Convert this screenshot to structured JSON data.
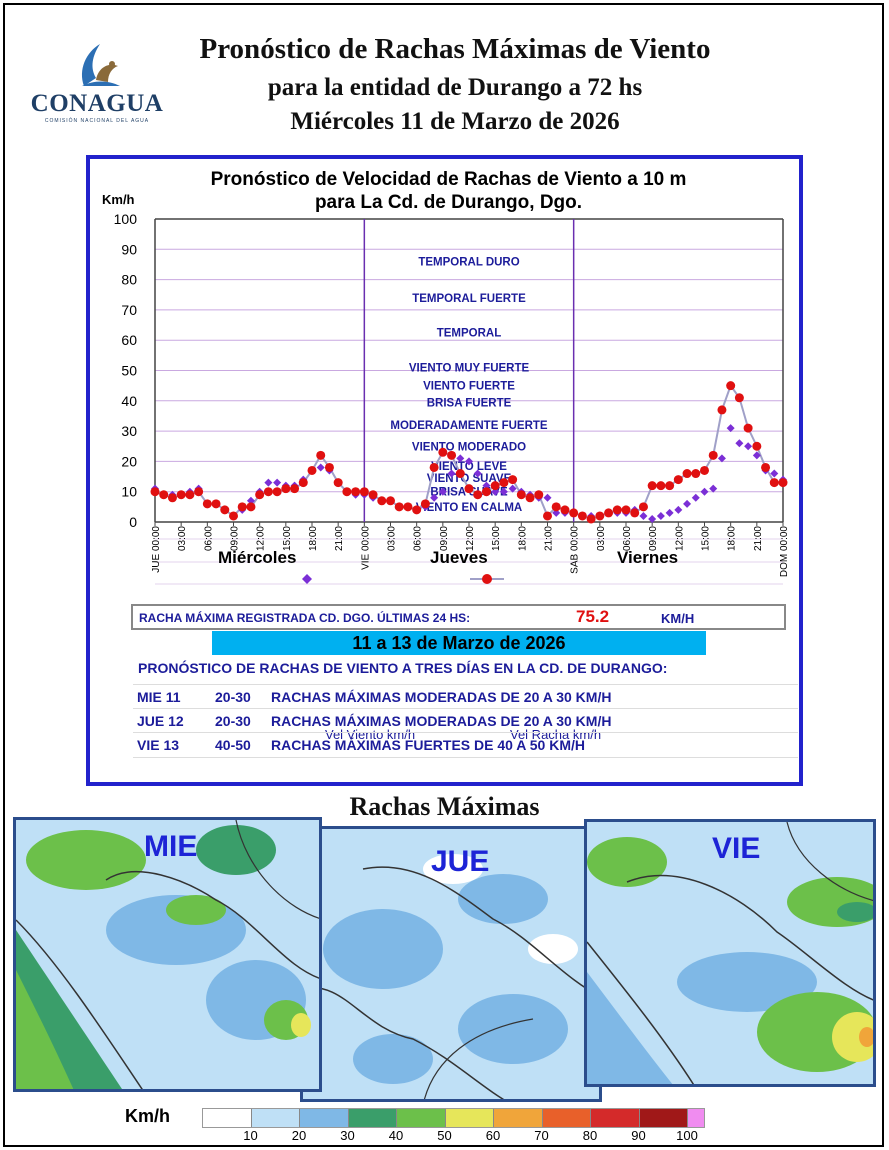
{
  "header": {
    "logo_text": "CONAGUA",
    "logo_subtext": "COMISIÓN NACIONAL DEL AGUA",
    "title_line1": "Pronóstico de Rachas Máximas de Viento",
    "title_line2": "para la entidad de Durango a 72 hs",
    "title_line3": "Miércoles 11 de Marzo de 2026"
  },
  "chart_data": {
    "type": "line",
    "title": "Pronóstico de Velocidad de Rachas de Viento a 10 m",
    "subtitle": "para La Cd. de Durango, Dgo.",
    "ylabel": "Km/h",
    "ylim": [
      0,
      100
    ],
    "yticks": [
      0,
      10,
      20,
      30,
      40,
      50,
      60,
      70,
      80,
      90,
      100
    ],
    "x_hours_step": 1,
    "xlim_hours": [
      0,
      72
    ],
    "xtick_labels": [
      "JUE 00:00",
      "03:00",
      "06:00",
      "09:00",
      "12:00",
      "15:00",
      "18:00",
      "21:00",
      "VIE 00:00",
      "03:00",
      "06:00",
      "09:00",
      "12:00",
      "15:00",
      "18:00",
      "21:00",
      "SAB 00:00",
      "03:00",
      "06:00",
      "09:00",
      "12:00",
      "15:00",
      "18:00",
      "21:00",
      "DOM 00:00"
    ],
    "day_labels": [
      "Miércoles",
      "Jueves",
      "Viernes"
    ],
    "day_dividers_hours": [
      24,
      48
    ],
    "grid": true,
    "legend_placement": "bottom",
    "scale_labels": [
      {
        "text": "TEMPORAL DURO",
        "y": 86
      },
      {
        "text": "TEMPORAL FUERTE",
        "y": 74
      },
      {
        "text": "TEMPORAL",
        "y": 62.5
      },
      {
        "text": "VIENTO MUY FUERTE",
        "y": 51
      },
      {
        "text": "VIENTO FUERTE",
        "y": 45
      },
      {
        "text": "BRISA FUERTE",
        "y": 39.5
      },
      {
        "text": "MODERADAMENTE FUERTE",
        "y": 32
      },
      {
        "text": "VIENTO MODERADO",
        "y": 25
      },
      {
        "text": "VIENTO LEVE",
        "y": 18.5
      },
      {
        "text": "VIENTO SUAVE",
        "y": 14.5
      },
      {
        "text": "BRISA SUAVE",
        "y": 10
      },
      {
        "text": "VIENTO EN CALMA",
        "y": 5
      }
    ],
    "series": [
      {
        "name": "Vel Viento km/h",
        "color": "#7b2fd6",
        "marker": "diamond",
        "values": [
          11,
          9,
          9,
          9,
          10,
          11,
          6,
          6,
          4,
          2,
          4,
          7,
          10,
          13,
          13,
          12,
          12,
          14,
          17,
          18,
          17,
          13,
          10,
          9,
          9,
          8,
          7,
          7,
          5,
          5,
          4,
          5,
          8,
          10,
          16,
          21,
          20,
          16,
          12,
          10,
          10,
          11,
          10,
          9,
          8,
          8,
          3,
          3,
          3,
          2,
          2,
          2,
          3,
          3,
          3,
          4,
          2,
          1,
          2,
          3,
          4,
          6,
          8,
          10,
          11,
          21,
          31,
          26,
          25,
          22,
          17,
          16,
          14
        ]
      },
      {
        "name": "Vel Racha km/h",
        "color": "#e01010",
        "line_color": "#a0a0c8",
        "marker": "circle",
        "values": [
          10,
          9,
          8,
          9,
          9,
          10,
          6,
          6,
          4,
          2,
          5,
          5,
          9,
          10,
          10,
          11,
          11,
          13,
          17,
          22,
          18,
          13,
          10,
          10,
          10,
          9,
          7,
          7,
          5,
          5,
          4,
          6,
          18,
          23,
          22,
          16,
          11,
          9,
          10,
          12,
          13,
          14,
          9,
          8,
          9,
          2,
          5,
          4,
          3,
          2,
          1,
          2,
          3,
          4,
          4,
          3,
          5,
          12,
          12,
          12,
          14,
          16,
          16,
          17,
          22,
          37,
          45,
          41,
          31,
          25,
          18,
          13,
          13
        ]
      }
    ]
  },
  "racha_registrada": {
    "label": "RACHA MÁXIMA REGISTRADA CD. DGO. ÚLTIMAS 24 HS:",
    "value": "75.2",
    "unit": "KM/H"
  },
  "forecast": {
    "date_range": "11 a 13 de Marzo de 2026",
    "heading": "PRONÓSTICO DE RACHAS DE VIENTO A TRES DÍAS EN LA CD. DE DURANGO:",
    "rows": [
      {
        "day": "MIE 11",
        "range": "20-30",
        "text": "RACHAS MÁXIMAS MODERADAS  DE 20 A 30 KM/H"
      },
      {
        "day": "JUE 12",
        "range": "20-30",
        "text": "RACHAS MÁXIMAS MODERADAS  DE 20 A 30 KM/H"
      },
      {
        "day": "VIE 13",
        "range": "40-50",
        "text": "RACHAS MÁXIMAS FUERTES  DE 40 A 50 KM/H"
      }
    ]
  },
  "maps": {
    "title": "Rachas Máximas",
    "labels": [
      "MIE",
      "JUE",
      "VIE"
    ]
  },
  "colorbar": {
    "title": "Km/h",
    "colors": [
      "#ffffff",
      "#bfe0f6",
      "#7fb8e6",
      "#3a9e6a",
      "#6cc04a",
      "#e6e65a",
      "#f0a53a",
      "#e8602a",
      "#d42a2a",
      "#a01818",
      "#f08cf0"
    ],
    "ticks": [
      "10",
      "20",
      "30",
      "40",
      "50",
      "60",
      "70",
      "80",
      "90",
      "100"
    ]
  }
}
